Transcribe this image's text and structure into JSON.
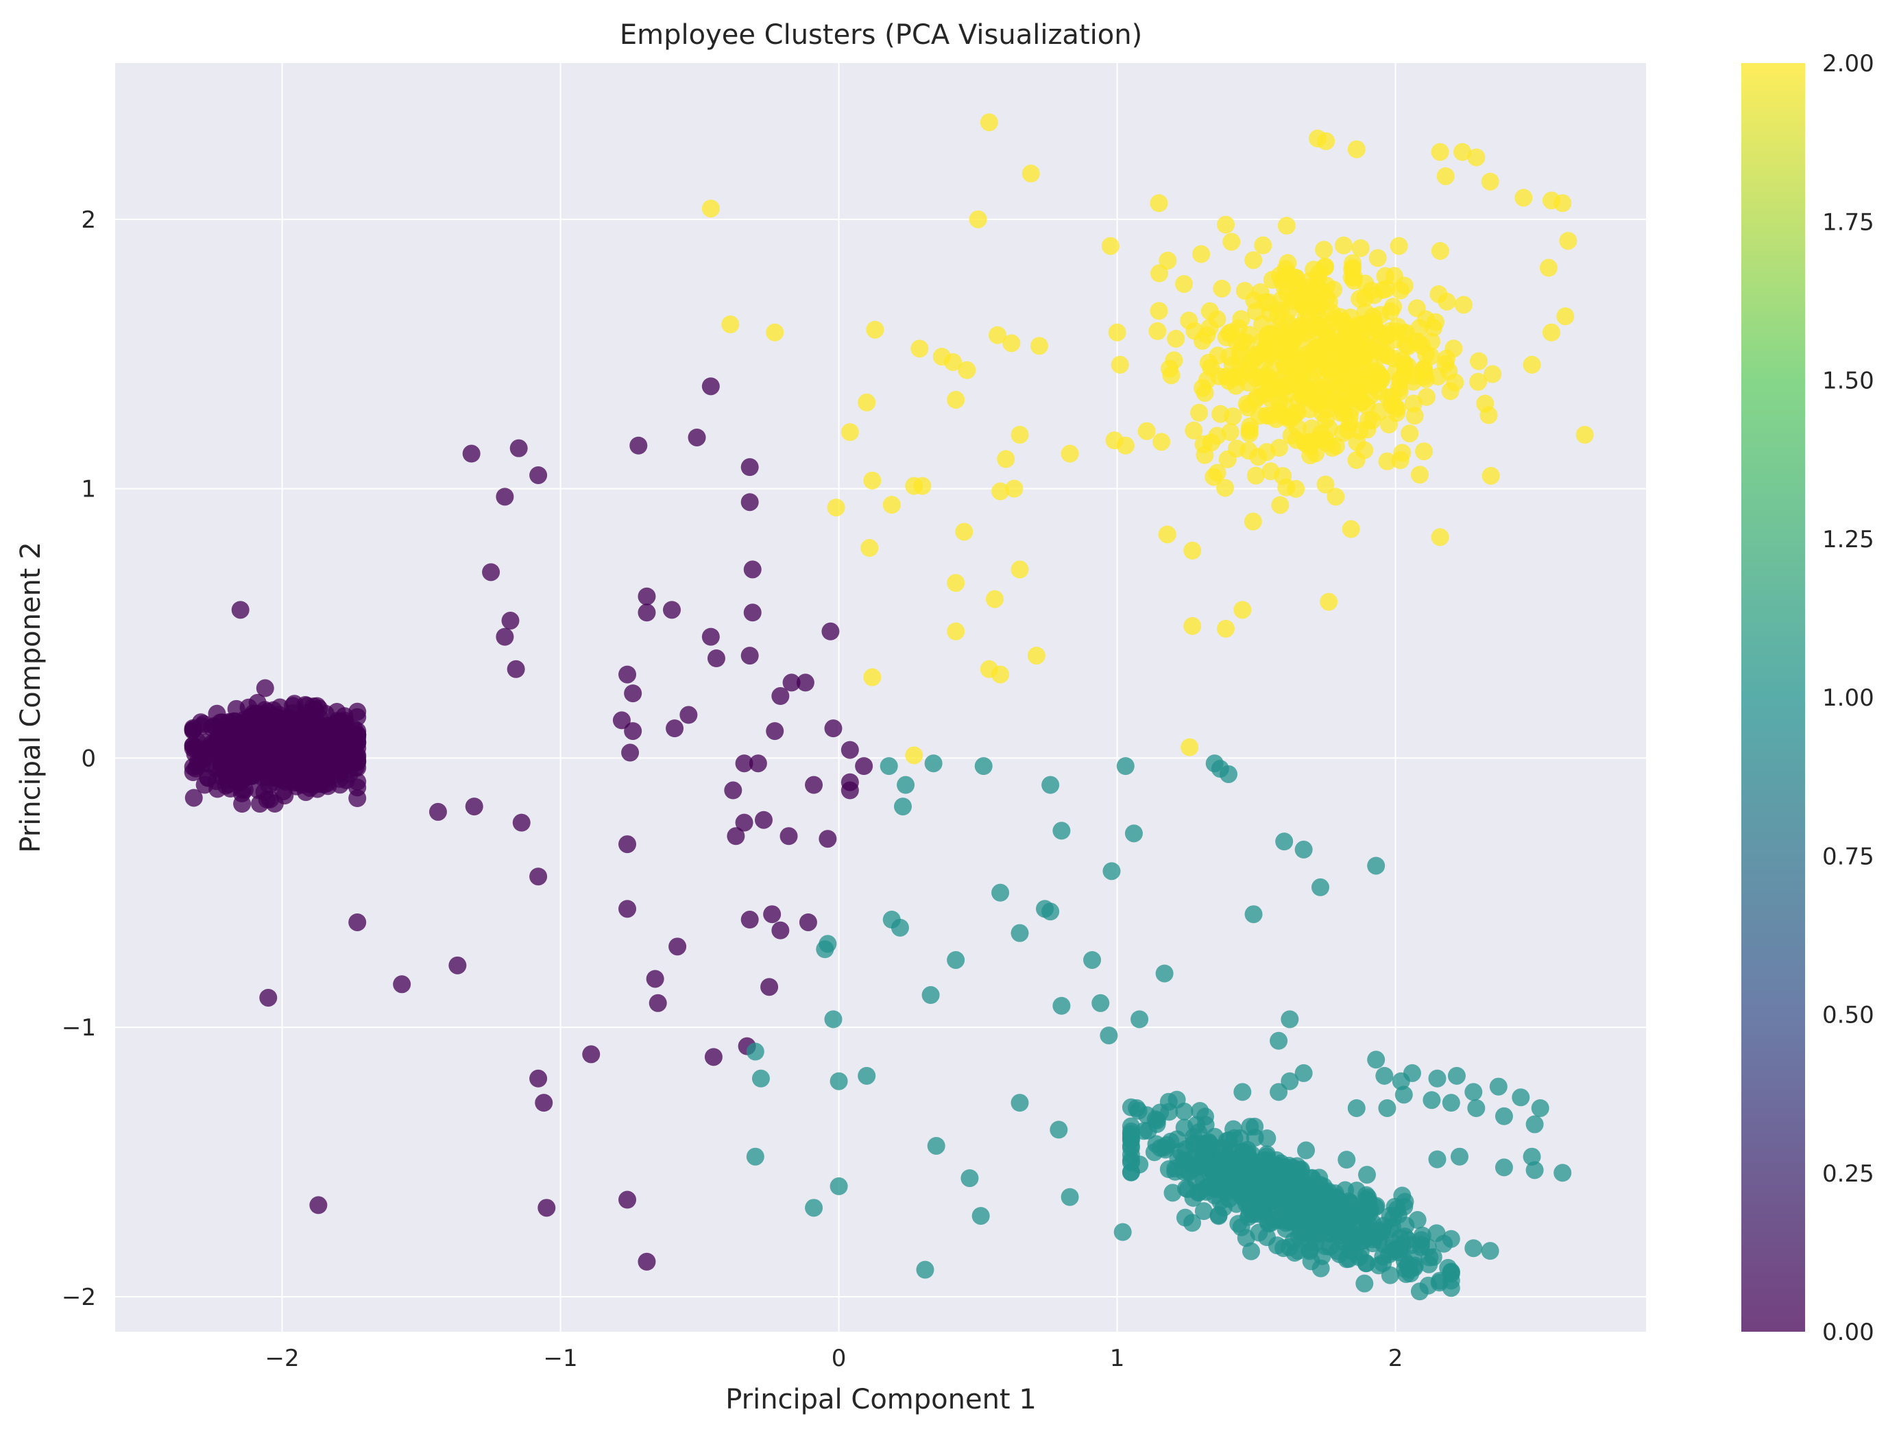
{
  "chart_data": {
    "type": "scatter",
    "title": "Employee Clusters (PCA Visualization)",
    "xlabel": "Principal Component 1",
    "ylabel": "Principal Component 2",
    "xlim": [
      -2.6,
      2.9
    ],
    "ylim": [
      -2.13,
      2.58
    ],
    "xticks": [
      -2,
      -1,
      0,
      1,
      2
    ],
    "yticks": [
      -2,
      -1,
      0,
      1,
      2
    ],
    "grid": true,
    "colorbar": {
      "range": [
        0,
        2
      ],
      "ticks": [
        "0.00",
        "0.25",
        "0.50",
        "0.75",
        "1.00",
        "1.25",
        "1.50",
        "1.75",
        "2.00"
      ],
      "colormap": "viridis",
      "colors": [
        "#440154",
        "#3b528b",
        "#21918c",
        "#5ec962",
        "#fde725"
      ]
    },
    "clusters": [
      {
        "label": 0,
        "color": "#440154",
        "dense_core": {
          "center": [
            -2.0,
            0.03
          ],
          "spread": [
            0.14,
            0.07
          ],
          "count": 900
        },
        "points": [
          [
            -2.15,
            0.55
          ],
          [
            -1.2,
            0.97
          ],
          [
            -1.08,
            1.05
          ],
          [
            -1.15,
            1.15
          ],
          [
            -1.32,
            1.13
          ],
          [
            -0.72,
            1.16
          ],
          [
            -0.51,
            1.19
          ],
          [
            -0.46,
            1.38
          ],
          [
            -0.32,
            1.08
          ],
          [
            -0.32,
            0.95
          ],
          [
            -1.25,
            0.69
          ],
          [
            -1.18,
            0.51
          ],
          [
            -1.2,
            0.45
          ],
          [
            -1.16,
            0.33
          ],
          [
            -0.69,
            0.6
          ],
          [
            -0.69,
            0.54
          ],
          [
            -0.6,
            0.55
          ],
          [
            -0.46,
            0.45
          ],
          [
            -0.44,
            0.37
          ],
          [
            -0.31,
            0.54
          ],
          [
            -0.31,
            0.7
          ],
          [
            -0.32,
            0.38
          ],
          [
            -0.76,
            0.31
          ],
          [
            -0.74,
            0.24
          ],
          [
            -0.78,
            0.14
          ],
          [
            -0.74,
            0.1
          ],
          [
            -0.59,
            0.11
          ],
          [
            -0.54,
            0.16
          ],
          [
            -0.12,
            0.28
          ],
          [
            -0.17,
            0.28
          ],
          [
            -0.21,
            0.23
          ],
          [
            -0.23,
            0.1
          ],
          [
            -0.03,
            0.47
          ],
          [
            -0.02,
            0.11
          ],
          [
            -0.75,
            0.02
          ],
          [
            0.04,
            0.03
          ],
          [
            0.09,
            -0.03
          ],
          [
            -0.34,
            -0.02
          ],
          [
            -0.29,
            -0.02
          ],
          [
            -0.09,
            -0.1
          ],
          [
            0.04,
            -0.09
          ],
          [
            0.04,
            -0.12
          ],
          [
            -0.38,
            -0.12
          ],
          [
            -1.44,
            -0.2
          ],
          [
            -1.31,
            -0.18
          ],
          [
            -1.14,
            -0.24
          ],
          [
            -0.76,
            -0.32
          ],
          [
            -0.37,
            -0.29
          ],
          [
            -0.34,
            -0.24
          ],
          [
            -0.27,
            -0.23
          ],
          [
            -0.18,
            -0.29
          ],
          [
            -0.04,
            -0.3
          ],
          [
            -1.73,
            -0.61
          ],
          [
            -1.08,
            -0.44
          ],
          [
            -0.76,
            -0.56
          ],
          [
            -0.32,
            -0.6
          ],
          [
            -0.24,
            -0.58
          ],
          [
            -0.21,
            -0.64
          ],
          [
            -0.11,
            -0.61
          ],
          [
            -0.58,
            -0.7
          ],
          [
            -2.05,
            -0.89
          ],
          [
            -1.57,
            -0.84
          ],
          [
            -1.37,
            -0.77
          ],
          [
            -0.66,
            -0.82
          ],
          [
            -0.65,
            -0.91
          ],
          [
            -0.25,
            -0.85
          ],
          [
            -0.89,
            -1.1
          ],
          [
            -0.45,
            -1.11
          ],
          [
            -0.33,
            -1.07
          ],
          [
            -1.08,
            -1.19
          ],
          [
            -1.06,
            -1.28
          ],
          [
            -1.87,
            -1.66
          ],
          [
            -1.05,
            -1.67
          ],
          [
            -0.76,
            -1.64
          ],
          [
            -0.69,
            -1.87
          ]
        ]
      },
      {
        "label": 1,
        "color": "#21918c",
        "dense_core": {
          "center": [
            1.6,
            -1.63
          ],
          "spread": [
            0.26,
            0.08
          ],
          "slope": -0.42,
          "count": 560
        },
        "points": [
          [
            0.18,
            -0.03
          ],
          [
            0.24,
            -0.1
          ],
          [
            0.23,
            -0.18
          ],
          [
            0.34,
            -0.02
          ],
          [
            0.52,
            -0.03
          ],
          [
            0.76,
            -0.1
          ],
          [
            1.03,
            -0.03
          ],
          [
            1.35,
            -0.02
          ],
          [
            1.37,
            -0.04
          ],
          [
            1.4,
            -0.06
          ],
          [
            0.8,
            -0.27
          ],
          [
            1.06,
            -0.28
          ],
          [
            1.6,
            -0.31
          ],
          [
            1.67,
            -0.34
          ],
          [
            1.73,
            -0.48
          ],
          [
            1.93,
            -0.4
          ],
          [
            0.58,
            -0.5
          ],
          [
            0.98,
            -0.42
          ],
          [
            0.74,
            -0.56
          ],
          [
            0.76,
            -0.57
          ],
          [
            0.65,
            -0.65
          ],
          [
            0.19,
            -0.6
          ],
          [
            0.22,
            -0.63
          ],
          [
            1.49,
            -0.58
          ],
          [
            -0.05,
            -0.71
          ],
          [
            -0.04,
            -0.69
          ],
          [
            0.42,
            -0.75
          ],
          [
            0.91,
            -0.75
          ],
          [
            1.17,
            -0.8
          ],
          [
            0.33,
            -0.88
          ],
          [
            0.8,
            -0.92
          ],
          [
            0.94,
            -0.91
          ],
          [
            1.08,
            -0.97
          ],
          [
            -0.02,
            -0.97
          ],
          [
            0.97,
            -1.03
          ],
          [
            1.62,
            -0.97
          ],
          [
            1.58,
            -1.05
          ],
          [
            -0.3,
            -1.09
          ],
          [
            -0.28,
            -1.19
          ],
          [
            0.0,
            -1.2
          ],
          [
            0.1,
            -1.18
          ],
          [
            1.45,
            -1.24
          ],
          [
            1.58,
            -1.24
          ],
          [
            1.62,
            -1.2
          ],
          [
            1.67,
            -1.17
          ],
          [
            0.65,
            -1.28
          ],
          [
            1.07,
            -1.3
          ],
          [
            1.86,
            -1.3
          ],
          [
            1.97,
            -1.3
          ],
          [
            2.03,
            -1.25
          ],
          [
            2.13,
            -1.27
          ],
          [
            2.2,
            -1.28
          ],
          [
            2.29,
            -1.3
          ],
          [
            2.37,
            -1.22
          ],
          [
            2.45,
            -1.26
          ],
          [
            1.93,
            -1.12
          ],
          [
            1.96,
            -1.18
          ],
          [
            2.02,
            -1.2
          ],
          [
            2.06,
            -1.17
          ],
          [
            2.15,
            -1.19
          ],
          [
            2.22,
            -1.18
          ],
          [
            2.28,
            -1.24
          ],
          [
            2.39,
            -1.33
          ],
          [
            2.5,
            -1.36
          ],
          [
            2.52,
            -1.3
          ],
          [
            0.79,
            -1.38
          ],
          [
            -0.3,
            -1.48
          ],
          [
            0.35,
            -1.44
          ],
          [
            0.0,
            -1.59
          ],
          [
            0.47,
            -1.56
          ],
          [
            -0.09,
            -1.67
          ],
          [
            0.51,
            -1.7
          ],
          [
            0.83,
            -1.63
          ],
          [
            1.02,
            -1.76
          ],
          [
            2.15,
            -1.49
          ],
          [
            2.23,
            -1.48
          ],
          [
            2.39,
            -1.52
          ],
          [
            2.49,
            -1.48
          ],
          [
            2.5,
            -1.53
          ],
          [
            2.6,
            -1.54
          ],
          [
            0.31,
            -1.9
          ],
          [
            2.28,
            -1.82
          ],
          [
            2.34,
            -1.83
          ],
          [
            2.12,
            -1.88
          ],
          [
            2.05,
            -1.9
          ]
        ]
      },
      {
        "label": 2,
        "color": "#fde725",
        "dense_core": {
          "center": [
            1.72,
            1.48
          ],
          "spread": [
            0.22,
            0.2
          ],
          "count": 520
        },
        "points": [
          [
            -0.46,
            2.04
          ],
          [
            0.54,
            2.36
          ],
          [
            0.69,
            2.17
          ],
          [
            0.5,
            2.0
          ],
          [
            1.15,
            2.06
          ],
          [
            1.72,
            2.3
          ],
          [
            1.75,
            2.29
          ],
          [
            1.86,
            2.26
          ],
          [
            2.16,
            2.25
          ],
          [
            2.24,
            2.25
          ],
          [
            2.29,
            2.23
          ],
          [
            2.18,
            2.16
          ],
          [
            2.34,
            2.14
          ],
          [
            2.46,
            2.08
          ],
          [
            2.56,
            2.07
          ],
          [
            2.6,
            2.06
          ],
          [
            2.62,
            1.92
          ],
          [
            2.55,
            1.82
          ],
          [
            2.61,
            1.64
          ],
          [
            2.56,
            1.58
          ],
          [
            2.49,
            1.46
          ],
          [
            2.68,
            1.2
          ],
          [
            2.16,
            0.82
          ],
          [
            1.84,
            0.85
          ],
          [
            1.76,
            0.58
          ],
          [
            1.45,
            0.55
          ],
          [
            1.39,
            0.48
          ],
          [
            1.27,
            0.49
          ],
          [
            1.27,
            0.77
          ],
          [
            1.18,
            0.83
          ],
          [
            1.26,
            0.04
          ],
          [
            1.39,
            1.98
          ],
          [
            1.24,
            1.76
          ],
          [
            1.15,
            1.66
          ],
          [
            1.03,
            1.16
          ],
          [
            1.01,
            1.46
          ],
          [
            1.0,
            1.58
          ],
          [
            0.83,
            1.13
          ],
          [
            0.72,
            1.53
          ],
          [
            0.62,
            1.54
          ],
          [
            0.57,
            1.57
          ],
          [
            0.46,
            1.44
          ],
          [
            0.41,
            1.47
          ],
          [
            0.37,
            1.49
          ],
          [
            0.29,
            1.52
          ],
          [
            0.13,
            1.59
          ],
          [
            0.1,
            1.32
          ],
          [
            0.04,
            1.21
          ],
          [
            0.12,
            1.03
          ],
          [
            0.19,
            0.94
          ],
          [
            0.27,
            1.01
          ],
          [
            0.3,
            1.01
          ],
          [
            -0.01,
            0.93
          ],
          [
            0.11,
            0.78
          ],
          [
            0.42,
            1.33
          ],
          [
            0.45,
            0.84
          ],
          [
            0.58,
            0.99
          ],
          [
            0.6,
            1.11
          ],
          [
            0.63,
            1.0
          ],
          [
            0.65,
            1.2
          ],
          [
            0.65,
            0.7
          ],
          [
            0.42,
            0.65
          ],
          [
            0.56,
            0.59
          ],
          [
            0.42,
            0.47
          ],
          [
            0.71,
            0.38
          ],
          [
            0.54,
            0.33
          ],
          [
            0.58,
            0.31
          ],
          [
            0.12,
            0.3
          ],
          [
            0.27,
            0.01
          ],
          [
            -0.39,
            1.61
          ],
          [
            -0.23,
            1.58
          ]
        ]
      }
    ]
  }
}
